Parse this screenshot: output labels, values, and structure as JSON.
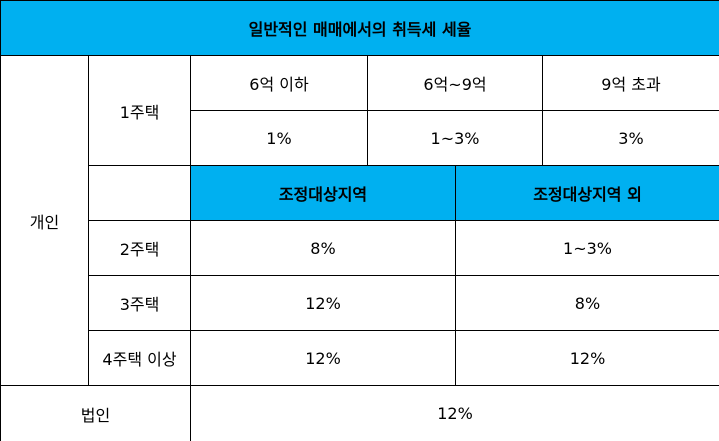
{
  "header": {
    "title": "일반적인 매매에서의 취득세 세율"
  },
  "table": {
    "individual_label": "개인",
    "one_house": {
      "label": "1주택",
      "brackets": [
        "6억 이하",
        "6억~9억",
        "9억 초과"
      ],
      "rates": [
        "1%",
        "1~3%",
        "3%"
      ]
    },
    "region_headers": [
      "조정대상지역",
      "조정대상지역 외"
    ],
    "rows": [
      [
        "2주택",
        "8%",
        "1~3%"
      ],
      [
        "3주택",
        "12%",
        "8%"
      ],
      [
        "4주택 이상",
        "12%",
        "12%"
      ]
    ],
    "corporate": {
      "label": "법인",
      "rate": "12%"
    }
  }
}
